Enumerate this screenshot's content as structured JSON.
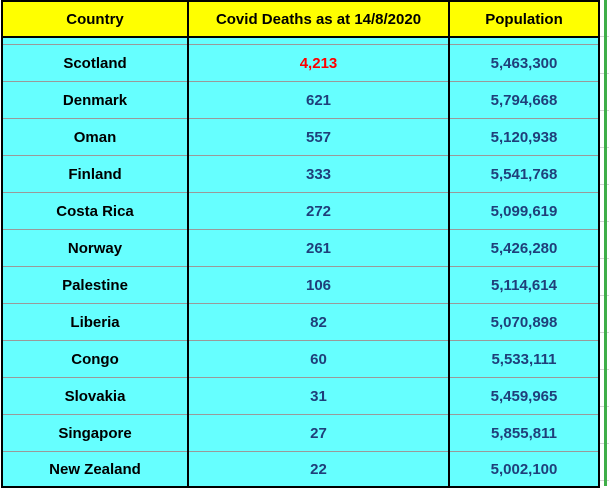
{
  "table": {
    "headers": {
      "country": "Country",
      "deaths": "Covid Deaths as at 14/8/2020",
      "population": "Population"
    },
    "rows": [
      {
        "country": "Scotland",
        "deaths": "4,213",
        "population": "5,463,300"
      },
      {
        "country": "Denmark",
        "deaths": "621",
        "population": "5,794,668"
      },
      {
        "country": "Oman",
        "deaths": "557",
        "population": "5,120,938"
      },
      {
        "country": "Finland",
        "deaths": "333",
        "population": "5,541,768"
      },
      {
        "country": "Costa Rica",
        "deaths": "272",
        "population": "5,099,619"
      },
      {
        "country": "Norway",
        "deaths": "261",
        "population": "5,426,280"
      },
      {
        "country": "Palestine",
        "deaths": "106",
        "population": "5,114,614"
      },
      {
        "country": "Liberia",
        "deaths": "82",
        "population": "5,070,898"
      },
      {
        "country": "Congo",
        "deaths": "60",
        "population": "5,533,111"
      },
      {
        "country": "Slovakia",
        "deaths": "31",
        "population": "5,459,965"
      },
      {
        "country": "Singapore",
        "deaths": "27",
        "population": "5,855,811"
      },
      {
        "country": "New Zealand",
        "deaths": "22",
        "population": "5,002,100"
      }
    ]
  },
  "colors": {
    "header_bg": "#ffff00",
    "cell_bg": "#66ffff",
    "number_text": "#1f3f7a",
    "highlight_text": "#ff0000",
    "border": "#000000"
  }
}
